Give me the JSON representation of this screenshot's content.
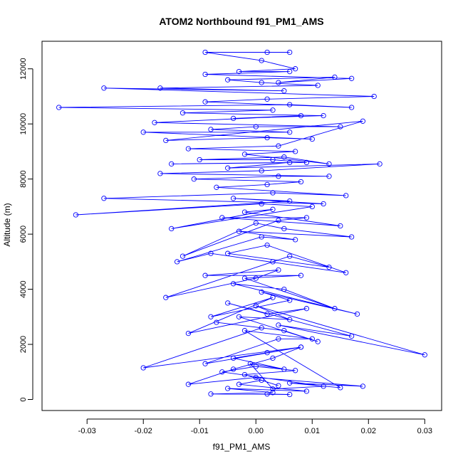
{
  "chart_data": {
    "type": "line",
    "title": "ATOM2 Northbound f91_PM1_AMS",
    "xlabel": "f91_PM1_AMS",
    "ylabel": "Altitude (m)",
    "xlim": [
      -0.038,
      0.033
    ],
    "ylim": [
      -400,
      13000
    ],
    "x_ticks": [
      -0.03,
      -0.02,
      -0.01,
      0.0,
      0.01,
      0.02,
      0.03
    ],
    "x_tick_labels": [
      "-0.03",
      "-0.02",
      "-0.01",
      "0.00",
      "0.01",
      "0.02",
      "0.03"
    ],
    "y_ticks": [
      0,
      2000,
      4000,
      6000,
      8000,
      10000,
      12000
    ],
    "y_tick_labels": [
      "0",
      "2000",
      "4000",
      "6000",
      "8000",
      "10000",
      "12000"
    ],
    "grid": false,
    "colors": {
      "series": "#0000ff",
      "axis": "#000000"
    },
    "series": [
      {
        "marker": "open-circle",
        "x": [
          0.002,
          0.006,
          -0.008,
          0.003,
          -0.005,
          0.009,
          -0.003,
          0.001,
          0.004,
          -0.002,
          0.007,
          0.0,
          -0.006,
          0.012,
          0.003,
          -0.001,
          0.005,
          -0.004,
          0.002,
          0.008,
          -0.009,
          0.004,
          0.01,
          -0.002,
          0.015,
          0.006,
          0.019,
          0.0,
          -0.012,
          -0.004,
          0.003,
          0.008,
          -0.02,
          0.001,
          -0.007,
          0.005,
          0.011,
          -0.003,
          0.006,
          0.0,
          0.03,
          0.004,
          0.017,
          -0.005,
          0.002,
          0.009,
          -0.012,
          0.003,
          -0.008,
          0.006,
          0.001,
          0.018,
          -0.004,
          0.005,
          0.014,
          -0.002,
          0.008,
          -0.009,
          0.004,
          0.0,
          -0.016,
          0.003,
          0.006,
          0.013,
          -0.005,
          0.002,
          0.016,
          -0.008,
          -0.014,
          0.001,
          0.007,
          -0.003,
          0.017,
          0.005,
          0.0,
          -0.013,
          0.004,
          0.009,
          -0.006,
          0.015,
          -0.002,
          0.003,
          -0.015,
          0.01,
          0.001,
          -0.032,
          0.006,
          -0.004,
          0.012,
          -0.027,
          0.003,
          0.016,
          -0.007,
          0.002,
          0.008,
          -0.011,
          0.004,
          0.013,
          -0.017,
          0.001,
          0.022,
          -0.005,
          0.006,
          -0.015,
          0.009,
          0.003,
          -0.01,
          0.005,
          0.013,
          -0.002,
          0.007,
          -0.012,
          0.004,
          0.019,
          -0.016,
          0.002,
          0.01,
          -0.02,
          0.006,
          -0.008,
          0.0,
          0.015,
          -0.018,
          0.008,
          -0.004,
          0.012,
          -0.013,
          0.003,
          -0.035,
          0.006,
          0.017,
          -0.009,
          0.002,
          0.021,
          -0.027,
          0.005,
          -0.017,
          0.011,
          0.001,
          -0.005,
          0.014,
          0.004,
          0.017,
          -0.009,
          0.006,
          -0.003,
          0.007,
          0.001,
          -0.009,
          0.002,
          0.006
        ],
        "y": [
          200,
          180,
          200,
          250,
          400,
          300,
          550,
          700,
          500,
          900,
          1050,
          1200,
          1000,
          480,
          380,
          1300,
          1100,
          1500,
          1700,
          1900,
          1300,
          2200,
          2200,
          2500,
          430,
          600,
          480,
          800,
          550,
          1100,
          1500,
          1900,
          1150,
          2600,
          2800,
          2500,
          2100,
          3000,
          2900,
          3400,
          1620,
          2700,
          2300,
          3500,
          3100,
          3300,
          2400,
          3700,
          3000,
          3600,
          3900,
          3100,
          4200,
          4000,
          3300,
          4400,
          4500,
          4500,
          4700,
          4400,
          3700,
          5000,
          5200,
          4800,
          5300,
          5600,
          4600,
          5300,
          5000,
          5900,
          5800,
          6100,
          5900,
          6200,
          6400,
          5200,
          6500,
          6600,
          6600,
          6300,
          6800,
          6900,
          6200,
          7000,
          7100,
          6700,
          7200,
          7300,
          7100,
          7300,
          7500,
          7400,
          7700,
          7800,
          7900,
          8000,
          8100,
          8100,
          8200,
          8300,
          8550,
          8400,
          8600,
          8550,
          8600,
          8700,
          8700,
          8800,
          8550,
          8900,
          9000,
          9100,
          9200,
          10100,
          9400,
          9500,
          9450,
          9700,
          9700,
          9800,
          9900,
          9900,
          10050,
          10300,
          10200,
          10300,
          10400,
          10500,
          10600,
          10700,
          10600,
          10800,
          10900,
          11000,
          11300,
          11200,
          11300,
          11400,
          11500,
          11600,
          11700,
          11500,
          11650,
          11800,
          11900,
          11900,
          12000,
          12300,
          12600,
          12600,
          12600
        ]
      }
    ]
  }
}
